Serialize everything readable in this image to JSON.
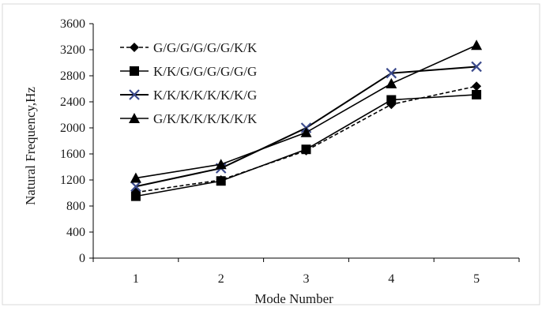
{
  "chart_data": {
    "type": "line",
    "xlabel": "Mode Number",
    "ylabel": "Natural Frequency,Hz",
    "categories": [
      "1",
      "2",
      "3",
      "4",
      "5"
    ],
    "ylim": [
      0,
      3600
    ],
    "yticks": [
      "0",
      "400",
      "800",
      "1200",
      "1600",
      "2000",
      "2400",
      "2800",
      "3200",
      "3600"
    ],
    "grid": false,
    "legend_position": "top-left",
    "series": [
      {
        "name": "G/G/G/G/G/G/K/K",
        "marker": "diamond",
        "dash": "dashed",
        "color": "#000000",
        "values": [
          1010,
          1200,
          1650,
          2360,
          2640
        ]
      },
      {
        "name": "K/K/G/G/G/G/G/G",
        "marker": "square",
        "dash": "solid",
        "color": "#000000",
        "values": [
          950,
          1185,
          1670,
          2430,
          2510
        ]
      },
      {
        "name": "K/K/K/K/K/K/K/G",
        "marker": "x",
        "dash": "solid",
        "color": "#000000",
        "values": [
          1100,
          1380,
          2000,
          2840,
          2940
        ]
      },
      {
        "name": "G/K/K/K/K/K/K/K",
        "marker": "triangle",
        "dash": "solid",
        "color": "#000000",
        "values": [
          1230,
          1440,
          1930,
          2680,
          3270
        ]
      }
    ],
    "marker_colors": {
      "x": "#3b4a8c",
      "default": "#000000"
    }
  }
}
